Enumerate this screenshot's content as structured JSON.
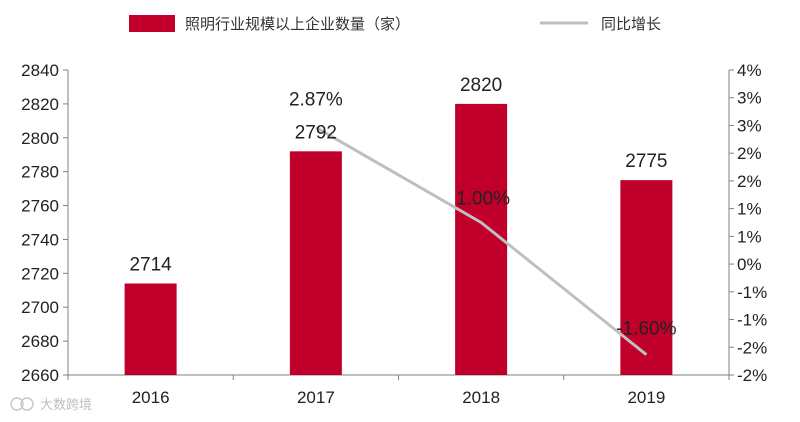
{
  "chart_data": {
    "type": "bar",
    "categories": [
      "2016",
      "2017",
      "2018",
      "2019"
    ],
    "series": [
      {
        "name": "照明行业规模以上企业数量（家）",
        "type": "bar",
        "axis": "left",
        "values": [
          2714,
          2792,
          2820,
          2775
        ],
        "labels": [
          "2714",
          "2792",
          "2820",
          "2775"
        ],
        "color": "#C0002B"
      },
      {
        "name": "同比增长",
        "type": "line",
        "axis": "right",
        "values": [
          null,
          2.87,
          1.0,
          -1.6
        ],
        "labels": [
          "",
          "2.87%",
          "1.00%",
          "-1.60%"
        ],
        "color": "#BFBFBF"
      }
    ],
    "ylim": [
      2660,
      2840
    ],
    "y_ticks": [
      "2660",
      "2680",
      "2700",
      "2720",
      "2740",
      "2760",
      "2780",
      "2800",
      "2820",
      "2840"
    ],
    "y2lim": [
      -2,
      4
    ],
    "y2_ticks": [
      "-2%",
      "-2%",
      "-1%",
      "-1%",
      "0%",
      "1%",
      "1%",
      "2%",
      "2%",
      "3%",
      "3%",
      "4%"
    ],
    "legend_position": "top",
    "grid": false
  },
  "watermark": "大数跨境"
}
